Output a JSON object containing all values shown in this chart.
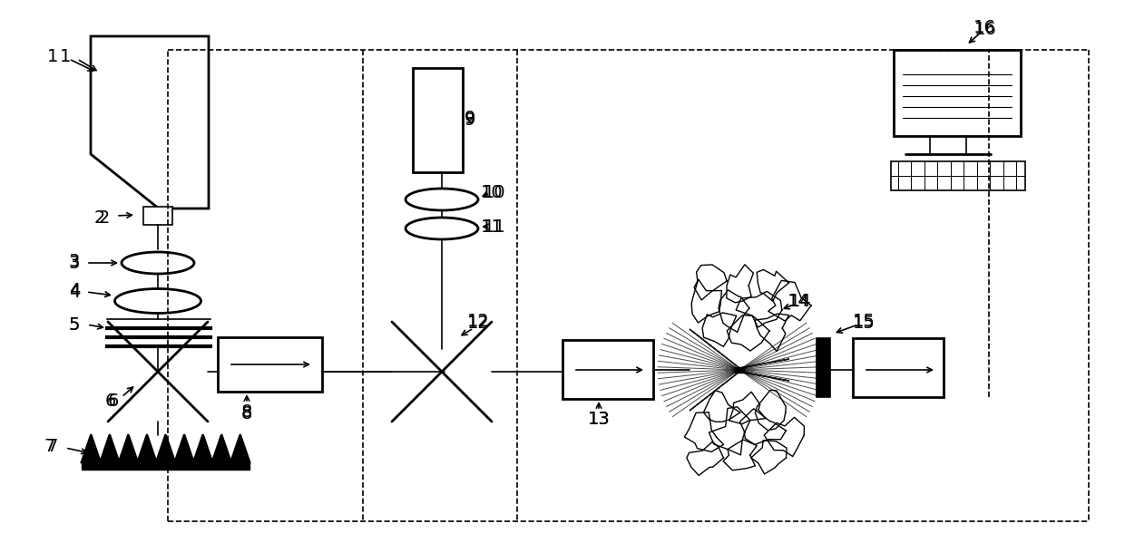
{
  "bg_color": "#ffffff",
  "line_color": "#000000",
  "fig_width": 12.4,
  "fig_height": 6.1,
  "dpi": 100
}
